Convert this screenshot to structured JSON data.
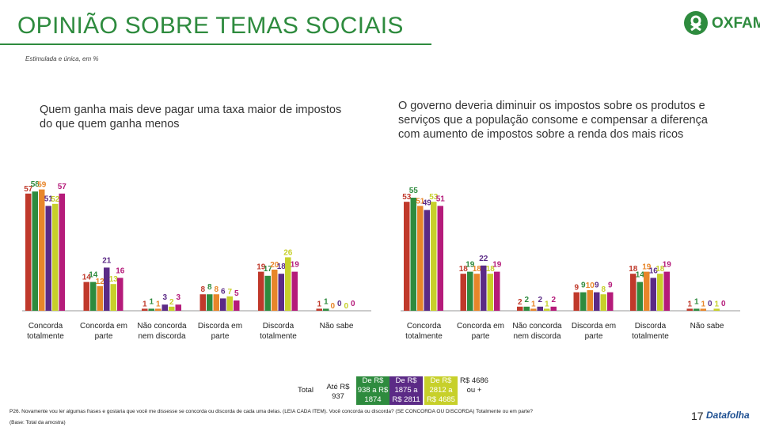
{
  "header": {
    "title": "OPINIÃO SOBRE TEMAS SOCIAIS",
    "subtitle": "Estimulada e única, em %",
    "logo_text": "OXFAM"
  },
  "colors": {
    "brand_green": "#2e8b3e",
    "series": [
      "#c0392b",
      "#2e8b3e",
      "#e8862a",
      "#5b2a86",
      "#c7d02a",
      "#b51b7a"
    ]
  },
  "legend": {
    "total": "Total",
    "c1": "Até R$ 937",
    "c2": "De R$ 938 a R$ 1874",
    "c3": "De R$ 1875 a R$ 2811",
    "c4": "De R$ 2812 a R$ 4685",
    "c5": "R$ 4686 ou +"
  },
  "chart_data": [
    {
      "type": "bar",
      "title": "Quem ganha mais deve pagar uma taxa maior de impostos do que quem ganha menos",
      "categories": [
        "Concorda totalmente",
        "Concorda em parte",
        "Não concorda nem discorda",
        "Discorda em parte",
        "Discorda totalmente",
        "Não sabe"
      ],
      "series": [
        {
          "name": "Total",
          "values": [
            57,
            14,
            1,
            8,
            19,
            1
          ]
        },
        {
          "name": "Até R$ 937",
          "values": [
            58,
            14,
            1,
            8,
            17,
            1
          ]
        },
        {
          "name": "De R$ 938 a R$ 1874",
          "values": [
            59,
            12,
            1,
            8,
            20,
            0
          ]
        },
        {
          "name": "De R$ 1875 a R$ 2811",
          "values": [
            51,
            21,
            3,
            6,
            18,
            0
          ]
        },
        {
          "name": "De R$ 2812 a R$ 4685",
          "values": [
            52,
            13,
            2,
            7,
            26,
            0
          ]
        },
        {
          "name": "R$ 4686 ou +",
          "values": [
            57,
            16,
            3,
            5,
            19,
            0
          ]
        }
      ]
    },
    {
      "type": "bar",
      "title": "O governo deveria diminuir os impostos sobre os produtos e serviços que a população consome e compensar a diferença com aumento de impostos sobre a renda dos mais ricos",
      "categories": [
        "Concorda totalmente",
        "Concorda em parte",
        "Não concorda nem discorda",
        "Discorda em parte",
        "Discorda totalmente",
        "Não sabe"
      ],
      "series": [
        {
          "name": "Total",
          "values": [
            53,
            18,
            2,
            9,
            18,
            1
          ]
        },
        {
          "name": "Até R$ 937",
          "values": [
            55,
            19,
            2,
            9,
            14,
            1
          ]
        },
        {
          "name": "De R$ 938 a R$ 1874",
          "values": [
            51,
            18,
            1,
            10,
            19,
            1
          ]
        },
        {
          "name": "De R$ 1875 a R$ 2811",
          "values": [
            49,
            22,
            2,
            9,
            16,
            0
          ]
        },
        {
          "name": "De R$ 2812 a R$ 4685",
          "values": [
            53,
            18,
            1,
            8,
            18,
            1
          ]
        },
        {
          "name": "R$ 4686 ou +",
          "values": [
            51,
            19,
            2,
            9,
            19,
            0
          ]
        }
      ]
    }
  ],
  "footnote": "P26. Novamente vou ler algumas frases e gostaria que você me dissesse se concorda ou discorda de cada uma delas. (LEIA CADA ITEM). Você concorda ou discorda? (SE CONCORDA OU DISCORDA) Totalmente ou em parte?",
  "basenote": "(Base: Total da amostra)",
  "page_number": "17",
  "source_logo": "Datafolha"
}
